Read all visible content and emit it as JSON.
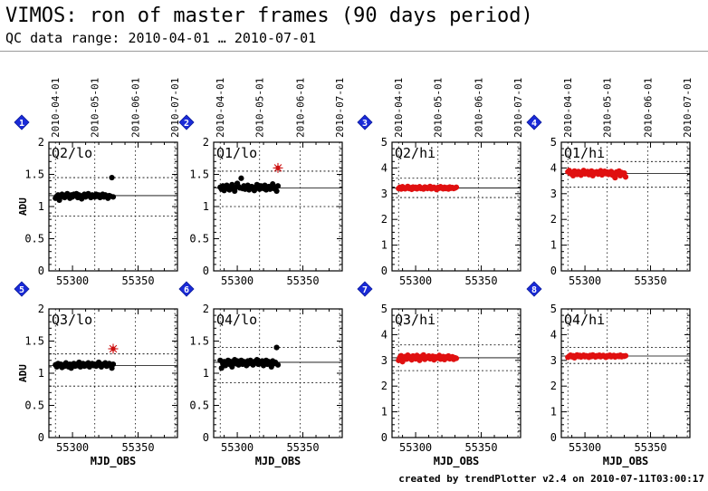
{
  "title": "VIMOS: ron of master frames (90 days period)",
  "subtitle": "QC data range: 2010-04-01 … 2010-07-01",
  "footer": "created by trendPlotter v2.4 on  2010-07-11T03:00:17",
  "colors": {
    "lo_points": "#000000",
    "hi_points": "#e01010",
    "outlier": "#cc1111",
    "badge": "#1a2bd8"
  },
  "chart_data": [
    {
      "panel": "1",
      "label": "Q2/lo",
      "type": "scatter",
      "xlim": [
        55282,
        55380
      ],
      "ylim": [
        0,
        2
      ],
      "x_ticks": [
        55300,
        55350
      ],
      "y_ticks": [
        0,
        0.5,
        1,
        1.5,
        2
      ],
      "date_ticks": [
        "2010-04-01",
        "2010-05-01",
        "2010-06-01",
        "2010-07-01"
      ],
      "ylabel": "ADU",
      "xlabel": "",
      "median": 1.17,
      "limits": [
        0.85,
        1.45
      ],
      "color": "#000000",
      "x": [
        55287,
        55288,
        55289,
        55290,
        55291,
        55292,
        55293,
        55294,
        55295,
        55296,
        55297,
        55298,
        55299,
        55300,
        55301,
        55302,
        55303,
        55304,
        55305,
        55306,
        55307,
        55308,
        55309,
        55310,
        55311,
        55312,
        55313,
        55314,
        55315,
        55316,
        55317,
        55318,
        55319,
        55320,
        55321,
        55322,
        55323,
        55324,
        55325,
        55326,
        55327,
        55328,
        55329,
        55330,
        55331
      ],
      "y": [
        1.13,
        1.16,
        1.18,
        1.1,
        1.15,
        1.19,
        1.17,
        1.14,
        1.18,
        1.2,
        1.16,
        1.13,
        1.18,
        1.15,
        1.19,
        1.17,
        1.2,
        1.14,
        1.18,
        1.16,
        1.12,
        1.17,
        1.19,
        1.15,
        1.18,
        1.2,
        1.16,
        1.14,
        1.18,
        1.17,
        1.15,
        1.19,
        1.16,
        1.18,
        1.14,
        1.17,
        1.19,
        1.15,
        1.18,
        1.16,
        1.13,
        1.17,
        1.16,
        1.45,
        1.15
      ],
      "outliers": []
    },
    {
      "panel": "2",
      "label": "Q1/lo",
      "type": "scatter",
      "xlim": [
        55282,
        55380
      ],
      "ylim": [
        0,
        2
      ],
      "x_ticks": [
        55300,
        55350
      ],
      "y_ticks": [
        0,
        0.5,
        1,
        1.5,
        2
      ],
      "date_ticks": [
        "2010-04-01",
        "2010-05-01",
        "2010-06-01",
        "2010-07-01"
      ],
      "ylabel": "",
      "xlabel": "",
      "median": 1.29,
      "limits": [
        1.0,
        1.55
      ],
      "color": "#000000",
      "x": [
        55287,
        55288,
        55289,
        55290,
        55291,
        55292,
        55293,
        55294,
        55295,
        55296,
        55297,
        55298,
        55299,
        55300,
        55301,
        55302,
        55303,
        55304,
        55305,
        55306,
        55307,
        55308,
        55309,
        55310,
        55311,
        55312,
        55313,
        55314,
        55315,
        55316,
        55317,
        55318,
        55319,
        55320,
        55321,
        55322,
        55323,
        55324,
        55325,
        55326,
        55327,
        55328,
        55329,
        55330,
        55331
      ],
      "y": [
        1.3,
        1.27,
        1.32,
        1.25,
        1.29,
        1.33,
        1.3,
        1.26,
        1.31,
        1.34,
        1.28,
        1.24,
        1.3,
        1.36,
        1.31,
        1.29,
        1.44,
        1.28,
        1.32,
        1.27,
        1.3,
        1.33,
        1.26,
        1.29,
        1.31,
        1.28,
        1.25,
        1.3,
        1.34,
        1.29,
        1.27,
        1.32,
        1.3,
        1.28,
        1.33,
        1.26,
        1.29,
        1.31,
        1.27,
        1.3,
        1.35,
        1.28,
        1.3,
        1.24,
        1.32
      ],
      "outliers": [
        {
          "x": 55331,
          "y": 1.6
        }
      ]
    },
    {
      "panel": "3",
      "label": "Q2/hi",
      "type": "scatter",
      "xlim": [
        55282,
        55380
      ],
      "ylim": [
        0,
        5
      ],
      "x_ticks": [
        55300,
        55350
      ],
      "y_ticks": [
        0,
        1,
        2,
        3,
        4,
        5
      ],
      "date_ticks": [
        "2010-04-01",
        "2010-05-01",
        "2010-06-01",
        "2010-07-01"
      ],
      "ylabel": "",
      "xlabel": "",
      "median": 3.22,
      "limits": [
        2.85,
        3.6
      ],
      "color": "#e01010",
      "x": [
        55287,
        55288,
        55289,
        55290,
        55291,
        55292,
        55293,
        55294,
        55295,
        55296,
        55297,
        55298,
        55299,
        55300,
        55301,
        55302,
        55303,
        55304,
        55305,
        55306,
        55307,
        55308,
        55309,
        55310,
        55311,
        55312,
        55313,
        55314,
        55315,
        55316,
        55317,
        55318,
        55319,
        55320,
        55321,
        55322,
        55323,
        55324,
        55325,
        55326,
        55327,
        55328,
        55329,
        55330,
        55331
      ],
      "y": [
        3.2,
        3.25,
        3.18,
        3.27,
        3.22,
        3.19,
        3.24,
        3.28,
        3.2,
        3.23,
        3.17,
        3.26,
        3.21,
        3.25,
        3.19,
        3.23,
        3.27,
        3.2,
        3.22,
        3.18,
        3.26,
        3.24,
        3.2,
        3.23,
        3.28,
        3.19,
        3.22,
        3.25,
        3.2,
        3.16,
        3.24,
        3.21,
        3.27,
        3.22,
        3.19,
        3.25,
        3.2,
        3.23,
        3.18,
        3.26,
        3.21,
        3.24,
        3.2,
        3.22,
        3.25
      ],
      "outliers": []
    },
    {
      "panel": "4",
      "label": "Q1/hi",
      "type": "scatter",
      "xlim": [
        55282,
        55380
      ],
      "ylim": [
        0,
        5
      ],
      "x_ticks": [
        55300,
        55350
      ],
      "y_ticks": [
        0,
        1,
        2,
        3,
        4,
        5
      ],
      "date_ticks": [
        "2010-04-01",
        "2010-05-01",
        "2010-06-01",
        "2010-07-01"
      ],
      "ylabel": "",
      "xlabel": "",
      "median": 3.78,
      "limits": [
        3.25,
        4.25
      ],
      "color": "#e01010",
      "x": [
        55287,
        55288,
        55289,
        55290,
        55291,
        55292,
        55293,
        55294,
        55295,
        55296,
        55297,
        55298,
        55299,
        55300,
        55301,
        55302,
        55303,
        55304,
        55305,
        55306,
        55307,
        55308,
        55309,
        55310,
        55311,
        55312,
        55313,
        55314,
        55315,
        55316,
        55317,
        55318,
        55319,
        55320,
        55321,
        55322,
        55323,
        55324,
        55325,
        55326,
        55327,
        55328,
        55329,
        55330,
        55331
      ],
      "y": [
        3.85,
        3.9,
        3.78,
        3.82,
        3.7,
        3.88,
        3.8,
        3.75,
        3.86,
        3.79,
        3.72,
        3.84,
        3.9,
        3.77,
        3.81,
        3.86,
        3.74,
        3.8,
        3.88,
        3.7,
        3.83,
        3.79,
        3.85,
        3.76,
        3.82,
        3.89,
        3.73,
        3.8,
        3.87,
        3.78,
        3.84,
        3.75,
        3.81,
        3.86,
        3.72,
        3.79,
        3.62,
        3.84,
        3.77,
        3.88,
        3.7,
        3.82,
        3.76,
        3.8,
        3.65
      ],
      "outliers": []
    },
    {
      "panel": "5",
      "label": "Q3/lo",
      "type": "scatter",
      "xlim": [
        55282,
        55380
      ],
      "ylim": [
        0,
        2
      ],
      "x_ticks": [
        55300,
        55350
      ],
      "y_ticks": [
        0,
        0.5,
        1,
        1.5,
        2
      ],
      "date_ticks": [],
      "ylabel": "ADU",
      "xlabel": "MJD_OBS",
      "median": 1.12,
      "limits": [
        0.8,
        1.3
      ],
      "color": "#000000",
      "x": [
        55287,
        55288,
        55289,
        55290,
        55291,
        55292,
        55293,
        55294,
        55295,
        55296,
        55297,
        55298,
        55299,
        55300,
        55301,
        55302,
        55303,
        55304,
        55305,
        55306,
        55307,
        55308,
        55309,
        55310,
        55311,
        55312,
        55313,
        55314,
        55315,
        55316,
        55317,
        55318,
        55319,
        55320,
        55321,
        55322,
        55323,
        55324,
        55325,
        55326,
        55327,
        55328,
        55329,
        55330,
        55331
      ],
      "y": [
        1.13,
        1.1,
        1.15,
        1.12,
        1.14,
        1.09,
        1.13,
        1.11,
        1.16,
        1.12,
        1.1,
        1.14,
        1.08,
        1.13,
        1.15,
        1.11,
        1.14,
        1.12,
        1.17,
        1.1,
        1.13,
        1.15,
        1.11,
        1.14,
        1.12,
        1.16,
        1.1,
        1.13,
        1.15,
        1.12,
        1.14,
        1.11,
        1.13,
        1.17,
        1.12,
        1.1,
        1.14,
        1.13,
        1.16,
        1.11,
        1.13,
        1.15,
        1.12,
        1.08,
        1.14
      ],
      "outliers": [
        {
          "x": 55331,
          "y": 1.38
        }
      ]
    },
    {
      "panel": "6",
      "label": "Q4/lo",
      "type": "scatter",
      "xlim": [
        55282,
        55380
      ],
      "ylim": [
        0,
        2
      ],
      "x_ticks": [
        55300,
        55350
      ],
      "y_ticks": [
        0,
        0.5,
        1,
        1.5,
        2
      ],
      "date_ticks": [],
      "ylabel": "",
      "xlabel": "MJD_OBS",
      "median": 1.17,
      "limits": [
        0.85,
        1.4
      ],
      "color": "#000000",
      "x": [
        55287,
        55288,
        55289,
        55290,
        55291,
        55292,
        55293,
        55294,
        55295,
        55296,
        55297,
        55298,
        55299,
        55300,
        55301,
        55302,
        55303,
        55304,
        55305,
        55306,
        55307,
        55308,
        55309,
        55310,
        55311,
        55312,
        55313,
        55314,
        55315,
        55316,
        55317,
        55318,
        55319,
        55320,
        55321,
        55322,
        55323,
        55324,
        55325,
        55326,
        55327,
        55328,
        55329,
        55330,
        55331
      ],
      "y": [
        1.2,
        1.08,
        1.15,
        1.18,
        1.12,
        1.16,
        1.2,
        1.14,
        1.18,
        1.1,
        1.17,
        1.21,
        1.15,
        1.19,
        1.13,
        1.17,
        1.2,
        1.14,
        1.18,
        1.16,
        1.12,
        1.19,
        1.15,
        1.2,
        1.17,
        1.13,
        1.18,
        1.16,
        1.21,
        1.14,
        1.18,
        1.15,
        1.19,
        1.12,
        1.17,
        1.2,
        1.14,
        1.18,
        1.16,
        1.1,
        1.19,
        1.15,
        1.17,
        1.4,
        1.13
      ],
      "outliers": []
    },
    {
      "panel": "7",
      "label": "Q3/hi",
      "type": "scatter",
      "xlim": [
        55282,
        55380
      ],
      "ylim": [
        0,
        5
      ],
      "x_ticks": [
        55300,
        55350
      ],
      "y_ticks": [
        0,
        1,
        2,
        3,
        4,
        5
      ],
      "date_ticks": [],
      "ylabel": "",
      "xlabel": "MJD_OBS",
      "median": 3.1,
      "limits": [
        2.6,
        3.6
      ],
      "color": "#e01010",
      "x": [
        55287,
        55288,
        55289,
        55290,
        55291,
        55292,
        55293,
        55294,
        55295,
        55296,
        55297,
        55298,
        55299,
        55300,
        55301,
        55302,
        55303,
        55304,
        55305,
        55306,
        55307,
        55308,
        55309,
        55310,
        55311,
        55312,
        55313,
        55314,
        55315,
        55316,
        55317,
        55318,
        55319,
        55320,
        55321,
        55322,
        55323,
        55324,
        55325,
        55326,
        55327,
        55328,
        55329,
        55330,
        55331
      ],
      "y": [
        3.0,
        3.12,
        3.18,
        2.95,
        3.1,
        3.15,
        3.05,
        3.2,
        3.08,
        3.14,
        3.02,
        3.17,
        3.1,
        3.06,
        3.19,
        3.12,
        3.0,
        3.15,
        3.09,
        3.21,
        3.04,
        3.13,
        3.1,
        3.17,
        3.06,
        3.11,
        3.16,
        3.02,
        3.14,
        3.08,
        3.12,
        3.19,
        3.05,
        3.1,
        3.15,
        3.03,
        3.13,
        3.09,
        3.17,
        3.06,
        3.11,
        3.14,
        3.04,
        3.1,
        3.08
      ],
      "outliers": []
    },
    {
      "panel": "8",
      "label": "Q4/hi",
      "type": "scatter",
      "xlim": [
        55282,
        55380
      ],
      "ylim": [
        0,
        5
      ],
      "x_ticks": [
        55300,
        55350
      ],
      "y_ticks": [
        0,
        1,
        2,
        3,
        4,
        5
      ],
      "date_ticks": [],
      "ylabel": "",
      "xlabel": "MJD_OBS",
      "median": 3.17,
      "limits": [
        2.88,
        3.5
      ],
      "color": "#e01010",
      "x": [
        55287,
        55288,
        55289,
        55290,
        55291,
        55292,
        55293,
        55294,
        55295,
        55296,
        55297,
        55298,
        55299,
        55300,
        55301,
        55302,
        55303,
        55304,
        55305,
        55306,
        55307,
        55308,
        55309,
        55310,
        55311,
        55312,
        55313,
        55314,
        55315,
        55316,
        55317,
        55318,
        55319,
        55320,
        55321,
        55322,
        55323,
        55324,
        55325,
        55326,
        55327,
        55328,
        55329,
        55330,
        55331
      ],
      "y": [
        3.12,
        3.16,
        3.2,
        3.14,
        3.18,
        3.1,
        3.17,
        3.21,
        3.15,
        3.19,
        3.13,
        3.17,
        3.2,
        3.14,
        3.18,
        3.16,
        3.12,
        3.19,
        3.15,
        3.21,
        3.17,
        3.13,
        3.18,
        3.16,
        3.2,
        3.14,
        3.17,
        3.19,
        3.15,
        3.12,
        3.18,
        3.16,
        3.2,
        3.14,
        3.17,
        3.19,
        3.13,
        3.16,
        3.18,
        3.15,
        3.2,
        3.14,
        3.17,
        3.16,
        3.18
      ],
      "outliers": []
    }
  ]
}
